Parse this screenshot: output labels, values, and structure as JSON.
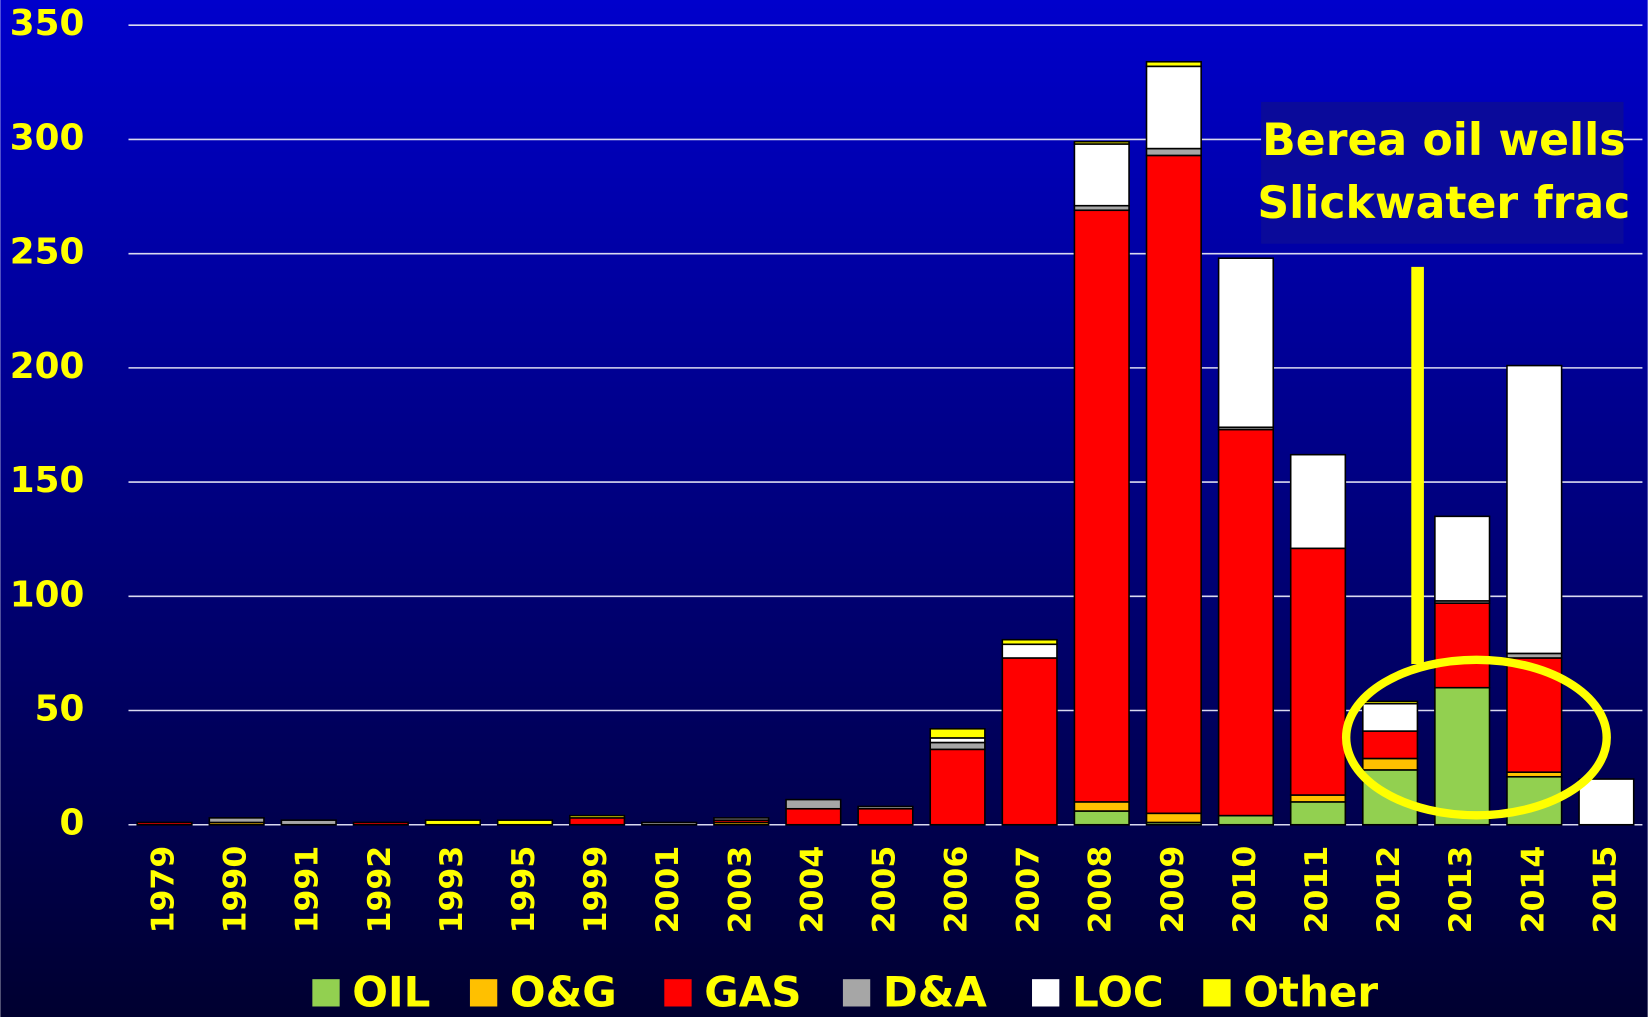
{
  "chart_data": {
    "type": "bar",
    "stacked": true,
    "categories": [
      "1979",
      "1990",
      "1991",
      "1992",
      "1993",
      "1995",
      "1999",
      "2001",
      "2003",
      "2004",
      "2005",
      "2006",
      "2007",
      "2008",
      "2009",
      "2010",
      "2011",
      "2012",
      "2013",
      "2014",
      "2015"
    ],
    "series": [
      {
        "name": "OIL",
        "color": "#92d050",
        "values": [
          0,
          0,
          0,
          0,
          0,
          0,
          0,
          0,
          0,
          0,
          0,
          0,
          0,
          6,
          1,
          4,
          10,
          24,
          60,
          21,
          0
        ]
      },
      {
        "name": "O&G",
        "color": "#ffc000",
        "values": [
          0,
          1,
          0,
          0,
          0,
          0,
          0,
          0,
          1,
          0,
          0,
          0,
          0,
          4,
          4,
          0,
          3,
          5,
          0,
          2,
          0
        ]
      },
      {
        "name": "GAS",
        "color": "#ff0000",
        "values": [
          1,
          0,
          0,
          1,
          0,
          0,
          3,
          0,
          1,
          7,
          7,
          33,
          73,
          259,
          288,
          169,
          108,
          12,
          37,
          50,
          0
        ]
      },
      {
        "name": "D&A",
        "color": "#a6a6a6",
        "values": [
          0,
          2,
          2,
          0,
          0,
          0,
          0,
          1,
          1,
          4,
          1,
          3,
          0,
          2,
          3,
          1,
          0,
          0,
          1,
          2,
          0
        ]
      },
      {
        "name": "LOC",
        "color": "#ffffff",
        "values": [
          0,
          0,
          0,
          0,
          0,
          0,
          0,
          0,
          0,
          0,
          0,
          2,
          6,
          27,
          36,
          74,
          41,
          12,
          37,
          126,
          20
        ]
      },
      {
        "name": "Other",
        "color": "#ffff00",
        "values": [
          0,
          0,
          0,
          0,
          2,
          2,
          1,
          0,
          0,
          0,
          0,
          4,
          2,
          1,
          2,
          0,
          0,
          1,
          0,
          0,
          0
        ]
      }
    ],
    "ylim": [
      0,
      350
    ],
    "yticks": [
      0,
      50,
      100,
      150,
      200,
      250,
      300,
      350
    ],
    "grid": true,
    "annotation": [
      "Berea oil wells",
      "Slickwater frac"
    ]
  }
}
